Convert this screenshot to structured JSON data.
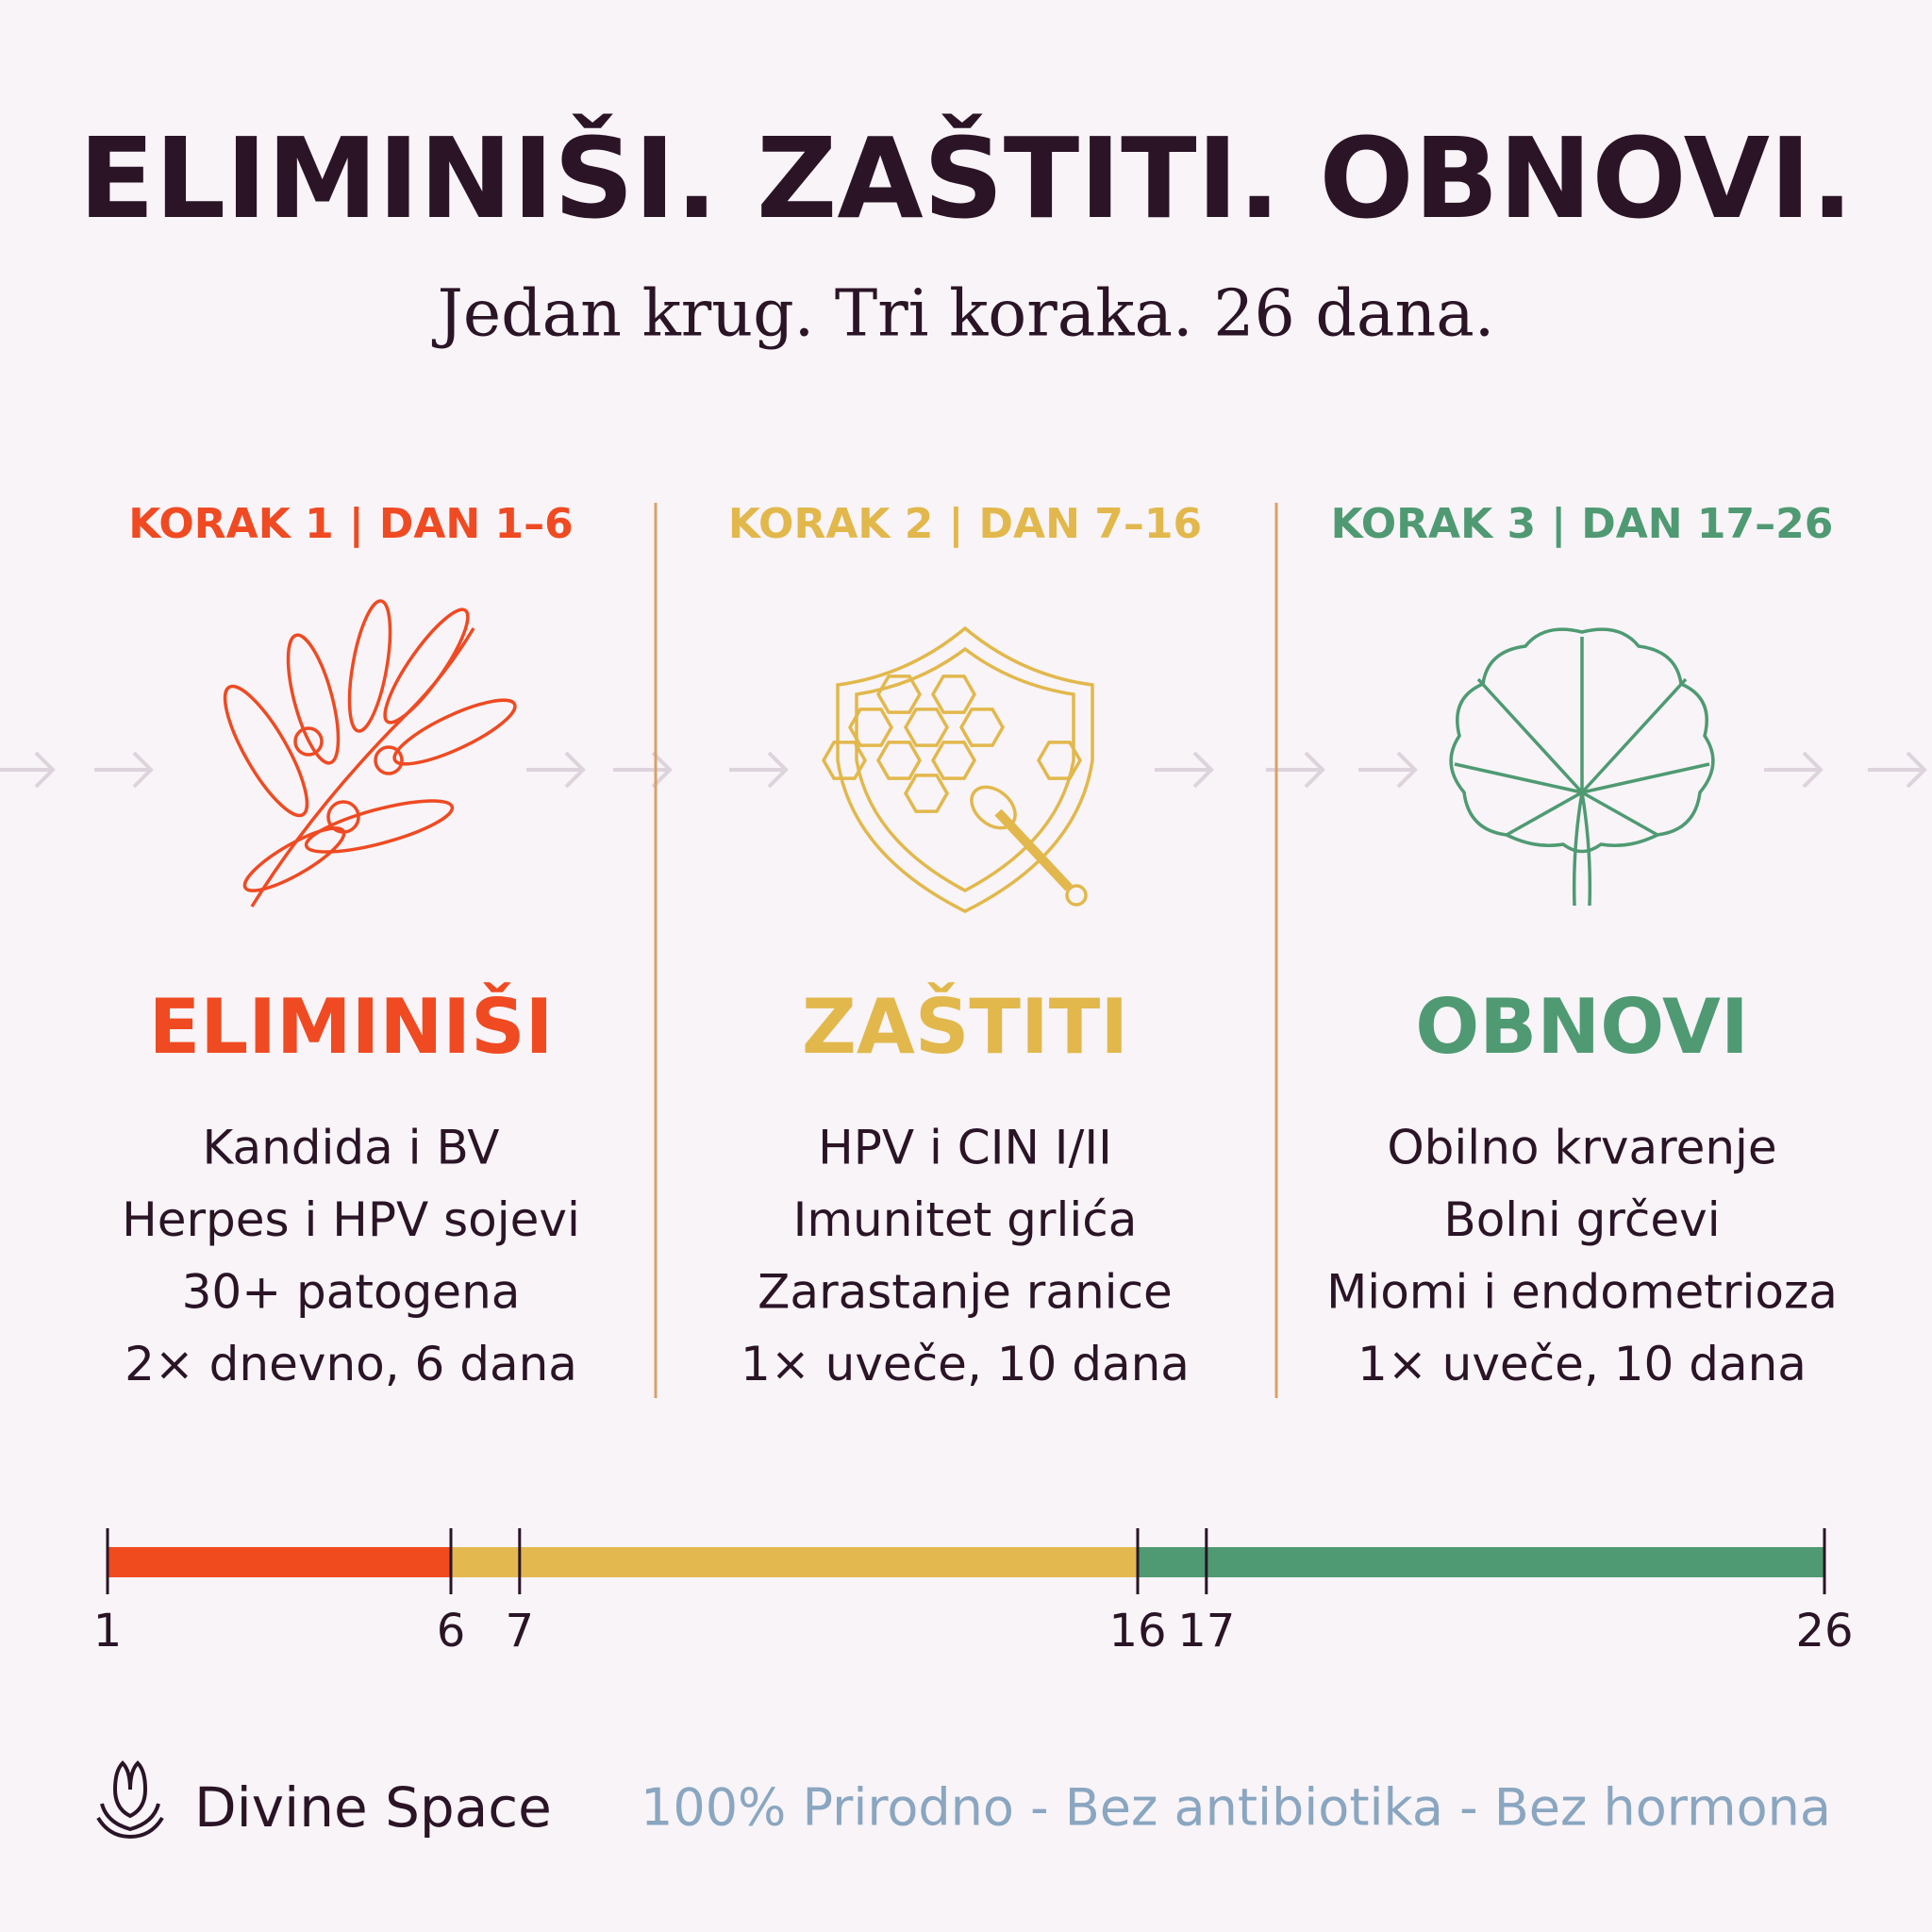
{
  "header": {
    "title": "ELIMINIŠI. ZAŠTITI. OBNOVI.",
    "subtitle": "Jedan krug. Tri koraka. 26 dana."
  },
  "steps": [
    {
      "step": "KORAK 1",
      "days": "DAN 1–6",
      "name": "ELIMINIŠI",
      "color": "#ef4a22",
      "items": [
        "Kandida i BV",
        "Herpes i HPV sojevi",
        "30+ patogena",
        "2× dnevno, 6 dana"
      ]
    },
    {
      "step": "KORAK 2",
      "days": "DAN 7–16",
      "name": "ZAŠTITI",
      "color": "#e2b84c",
      "items": [
        "HPV i CIN I/II",
        "Imunitet grlića",
        "Zarastanje ranice",
        "1× uveče, 10 dana"
      ]
    },
    {
      "step": "KORAK 3",
      "days": "DAN 17–26",
      "name": "OBNOVI",
      "color": "#4f9a72",
      "items": [
        "Obilno krvarenje",
        "Bolni grčevi",
        "Miomi i endometrioza",
        "1× uveče, 10 dana"
      ]
    }
  ],
  "timeline": {
    "xlim": [
      1,
      26
    ],
    "xticks": [
      1,
      6,
      7,
      16,
      17,
      26
    ],
    "segments": [
      {
        "start": 1,
        "end": 6,
        "color": "#f04a1f"
      },
      {
        "start": 6,
        "end": 16,
        "color": "#e3b94f"
      },
      {
        "start": 16,
        "end": 26,
        "color": "#4f9a72"
      }
    ]
  },
  "footer": {
    "brand": "Divine Space",
    "tagline": "100% Prirodno - Bez antibiotika - Bez hormona"
  }
}
